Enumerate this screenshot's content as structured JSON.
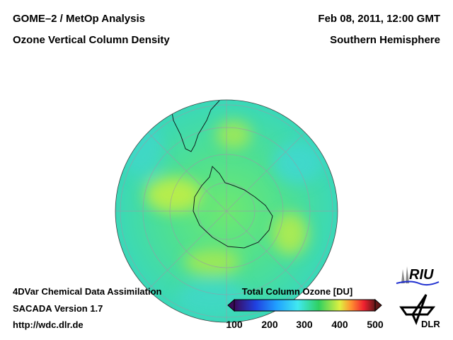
{
  "header": {
    "title_left_1": "GOME–2 / MetOp Analysis",
    "title_left_2": "Ozone Vertical Column Density",
    "title_right_1": "Feb 08, 2011, 12:00 GMT",
    "title_right_2": "Southern Hemisphere"
  },
  "footer": {
    "line1": "4DVar Chemical Data Assimilation",
    "line2": "SACADA Version 1.7",
    "line3": "http://wdc.dlr.de"
  },
  "colorbar": {
    "title": "Total Column Ozone [DU]",
    "ticks": [
      "100",
      "200",
      "300",
      "400",
      "500"
    ],
    "range": [
      100,
      500
    ],
    "colors": [
      "#3a0a5a",
      "#2040e0",
      "#20a0ff",
      "#40e8f0",
      "#30d060",
      "#e0f040",
      "#ff9030",
      "#f02030",
      "#601818"
    ]
  },
  "logos": {
    "riu": "RIU",
    "dlr": "DLR"
  },
  "map": {
    "projection": "orthographic south polar",
    "ocean_color": "#48e0a0"
  }
}
